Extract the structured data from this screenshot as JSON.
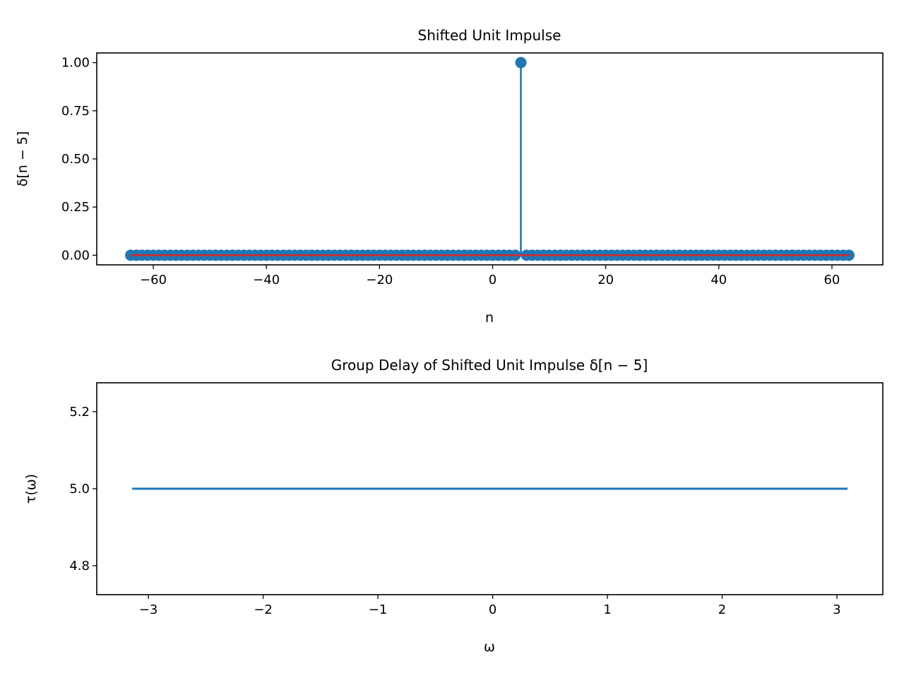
{
  "chart_data": [
    {
      "type": "stem",
      "title": "Shifted Unit Impulse",
      "xlabel": "n",
      "ylabel": "δ[n − 5]",
      "xlim": [
        -70,
        69
      ],
      "ylim": [
        -0.05,
        1.05
      ],
      "xticks": [
        -60,
        -40,
        -20,
        0,
        20,
        40,
        60
      ],
      "xtick_labels": [
        "−60",
        "−40",
        "−20",
        "0",
        "20",
        "40",
        "60"
      ],
      "yticks": [
        0,
        0.25,
        0.5,
        0.75,
        1.0
      ],
      "ytick_labels": [
        "0.00",
        "0.25",
        "0.50",
        "0.75",
        "1.00"
      ],
      "n_range": [
        -64,
        63
      ],
      "impulse_at": 5,
      "impulse_value": 1.0,
      "marker_color": "#1f77b4",
      "baseline_color": "#d62728"
    },
    {
      "type": "line",
      "title": "Group Delay of Shifted Unit Impulse δ[n − 5]",
      "xlabel": "ω",
      "ylabel": "τ(ω)",
      "xlim": [
        -3.45,
        3.4
      ],
      "ylim": [
        4.725,
        5.275
      ],
      "xticks": [
        -3,
        -2,
        -1,
        0,
        1,
        2,
        3
      ],
      "xtick_labels": [
        "−3",
        "−2",
        "−1",
        "0",
        "1",
        "2",
        "3"
      ],
      "yticks": [
        4.8,
        5.0,
        5.2
      ],
      "ytick_labels": [
        "4.8",
        "5.0",
        "5.2"
      ],
      "x": [
        -3.1416,
        3.0925
      ],
      "y": [
        5.0,
        5.0
      ],
      "line_color": "#1f77b4"
    }
  ]
}
